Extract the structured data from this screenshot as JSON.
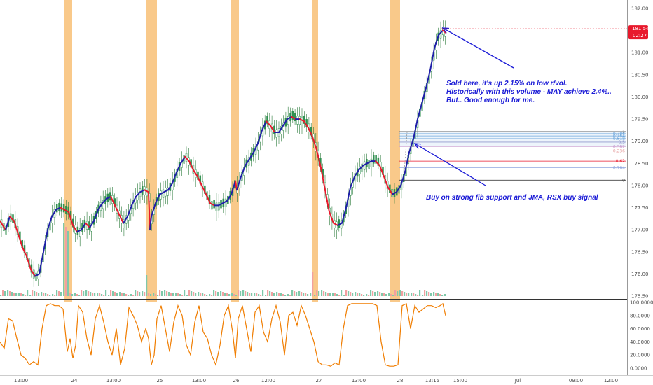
{
  "chart_data": [
    {
      "type": "candlestick",
      "title": "",
      "price_axis": {
        "ticks": [
          "182.00",
          "181.50",
          "181.00",
          "180.50",
          "180.00",
          "179.50",
          "179.00",
          "178.50",
          "178.00",
          "177.50",
          "177.00",
          "176.50",
          "176.00",
          "175.50"
        ],
        "ylim": [
          175.5,
          182.0
        ]
      },
      "time_axis": {
        "ticks": [
          "12:00",
          "24",
          "13:00",
          "25",
          "13:00",
          "26",
          "12:00",
          "27",
          "13:00",
          "28",
          "12:15",
          "15:00",
          "Jul",
          "09:00",
          "12:00"
        ]
      },
      "last_price": {
        "value": "181.54",
        "countdown": "02:27",
        "color": "#e8192c"
      },
      "session_highlight_color": "#f9c98a",
      "jma_line": {
        "name": "JMA",
        "rising_color": "#1f1fa8",
        "falling_color": "#e8192c",
        "points": [
          [
            0,
            177.2
          ],
          [
            8,
            177.0
          ],
          [
            14,
            177.3
          ],
          [
            20,
            177.2
          ],
          [
            26,
            176.9
          ],
          [
            32,
            176.6
          ],
          [
            38,
            176.4
          ],
          [
            44,
            176.1
          ],
          [
            50,
            175.95
          ],
          [
            56,
            176.0
          ],
          [
            62,
            176.5
          ],
          [
            68,
            177.0
          ],
          [
            74,
            177.3
          ],
          [
            80,
            177.45
          ],
          [
            86,
            177.5
          ],
          [
            92,
            177.45
          ],
          [
            98,
            177.4
          ],
          [
            104,
            177.1
          ],
          [
            110,
            176.95
          ],
          [
            116,
            177.0
          ],
          [
            122,
            177.15
          ],
          [
            128,
            177.05
          ],
          [
            134,
            177.2
          ],
          [
            140,
            177.45
          ],
          [
            146,
            177.6
          ],
          [
            152,
            177.7
          ],
          [
            158,
            177.75
          ],
          [
            164,
            177.55
          ],
          [
            170,
            177.35
          ],
          [
            176,
            177.15
          ],
          [
            182,
            177.3
          ],
          [
            188,
            177.55
          ],
          [
            194,
            177.75
          ],
          [
            200,
            177.85
          ],
          [
            206,
            177.9
          ],
          [
            212,
            177.85
          ],
          [
            214,
            177.0
          ],
          [
            216,
            177.3
          ],
          [
            222,
            177.6
          ],
          [
            228,
            177.8
          ],
          [
            234,
            177.85
          ],
          [
            240,
            177.9
          ],
          [
            246,
            178.05
          ],
          [
            252,
            178.3
          ],
          [
            258,
            178.5
          ],
          [
            264,
            178.65
          ],
          [
            270,
            178.55
          ],
          [
            276,
            178.35
          ],
          [
            282,
            178.2
          ],
          [
            288,
            178.0
          ],
          [
            294,
            177.8
          ],
          [
            300,
            177.6
          ],
          [
            306,
            177.55
          ],
          [
            312,
            177.55
          ],
          [
            318,
            177.6
          ],
          [
            324,
            177.65
          ],
          [
            330,
            177.8
          ],
          [
            336,
            178.1
          ],
          [
            338,
            177.9
          ],
          [
            344,
            178.2
          ],
          [
            350,
            178.45
          ],
          [
            356,
            178.6
          ],
          [
            362,
            178.75
          ],
          [
            368,
            178.95
          ],
          [
            374,
            179.25
          ],
          [
            380,
            179.45
          ],
          [
            386,
            179.35
          ],
          [
            392,
            179.2
          ],
          [
            398,
            179.2
          ],
          [
            404,
            179.35
          ],
          [
            410,
            179.5
          ],
          [
            416,
            179.55
          ],
          [
            422,
            179.5
          ],
          [
            428,
            179.5
          ],
          [
            434,
            179.45
          ],
          [
            440,
            179.3
          ],
          [
            446,
            179.1
          ],
          [
            452,
            178.8
          ],
          [
            458,
            178.4
          ],
          [
            464,
            177.9
          ],
          [
            470,
            177.4
          ],
          [
            476,
            177.15
          ],
          [
            482,
            177.1
          ],
          [
            488,
            177.15
          ],
          [
            494,
            177.5
          ],
          [
            500,
            177.95
          ],
          [
            506,
            178.2
          ],
          [
            512,
            178.35
          ],
          [
            518,
            178.45
          ],
          [
            524,
            178.5
          ],
          [
            530,
            178.55
          ],
          [
            536,
            178.55
          ],
          [
            542,
            178.45
          ],
          [
            548,
            178.2
          ],
          [
            554,
            177.95
          ],
          [
            560,
            177.8
          ],
          [
            566,
            177.85
          ],
          [
            572,
            178.0
          ],
          [
            578,
            178.3
          ],
          [
            584,
            178.75
          ],
          [
            590,
            179.05
          ],
          [
            596,
            179.5
          ],
          [
            602,
            179.85
          ],
          [
            608,
            180.2
          ],
          [
            614,
            180.6
          ],
          [
            620,
            181.1
          ],
          [
            626,
            181.4
          ],
          [
            632,
            181.5
          ],
          [
            636,
            181.45
          ]
        ]
      },
      "annotations": [
        {
          "text": "Sold here, it's up 2.15% on low r/vol.",
          "color": "#1a1ad6"
        },
        {
          "text": "Historically with this volume - MAY achieve 2.4%..",
          "color": "#1a1ad6"
        },
        {
          "text": "But.. Good enough for me.",
          "color": "#1a1ad6"
        },
        {
          "text": "Buy on strong fib support and JMA, RSX buy signal",
          "color": "#1a1ad6"
        }
      ],
      "fib_levels": [
        {
          "label": "1",
          "color": "#808080"
        },
        {
          "label": "0.786",
          "color": "#6fa8dc"
        },
        {
          "label": "0.764",
          "color": "#6fa8dc"
        },
        {
          "label": "0.618",
          "color": "#6fa8dc"
        },
        {
          "label": "0.5",
          "color": "#9999cc"
        },
        {
          "label": "0.382",
          "color": "#cc99cc"
        },
        {
          "label": "0.236",
          "color": "#e6a0a0"
        },
        {
          "label": "0.62",
          "color": "#e8192c"
        },
        {
          "label": "0.764",
          "color": "#8fa6e0"
        },
        {
          "label": "0",
          "color": "#404040"
        }
      ]
    },
    {
      "type": "line",
      "name": "RSX",
      "ylim": [
        0,
        100
      ],
      "ticks": [
        "100.0000",
        "80.0000",
        "60.0000",
        "40.0000",
        "20.0000",
        "0.0000"
      ],
      "color": "#f07d00",
      "x": [
        0,
        6,
        12,
        18,
        24,
        30,
        36,
        42,
        48,
        54,
        60,
        66,
        72,
        78,
        84,
        90,
        96,
        100,
        104,
        108,
        112,
        118,
        124,
        130,
        136,
        142,
        148,
        154,
        160,
        166,
        172,
        178,
        184,
        190,
        196,
        202,
        208,
        212,
        216,
        220,
        224,
        230,
        236,
        242,
        248,
        254,
        260,
        266,
        272,
        278,
        284,
        290,
        296,
        302,
        308,
        314,
        320,
        326,
        332,
        336,
        340,
        346,
        352,
        358,
        364,
        370,
        376,
        382,
        388,
        394,
        400,
        406,
        412,
        418,
        424,
        430,
        436,
        442,
        448,
        454,
        460,
        466,
        472,
        478,
        484,
        490,
        496,
        502,
        508,
        514,
        520,
        526,
        532,
        538,
        544,
        550,
        556,
        562,
        568,
        574,
        580,
        586,
        592,
        598,
        604,
        610,
        616,
        622,
        628,
        632,
        636
      ],
      "values": [
        40,
        30,
        75,
        72,
        45,
        20,
        15,
        5,
        10,
        5,
        60,
        95,
        98,
        95,
        95,
        90,
        25,
        45,
        15,
        35,
        95,
        85,
        45,
        20,
        75,
        95,
        70,
        40,
        20,
        60,
        5,
        30,
        92,
        80,
        65,
        40,
        60,
        45,
        5,
        20,
        75,
        95,
        60,
        25,
        70,
        95,
        80,
        35,
        20,
        70,
        95,
        55,
        45,
        20,
        5,
        35,
        80,
        95,
        55,
        15,
        75,
        95,
        60,
        25,
        85,
        95,
        55,
        40,
        75,
        95,
        70,
        20,
        80,
        85,
        65,
        95,
        80,
        60,
        40,
        10,
        5,
        5,
        3,
        8,
        5,
        60,
        95,
        98,
        98,
        98,
        98,
        98,
        98,
        95,
        40,
        5,
        3,
        3,
        5,
        95,
        98,
        60,
        95,
        85,
        90,
        95,
        95,
        92,
        95,
        98,
        80
      ]
    }
  ]
}
